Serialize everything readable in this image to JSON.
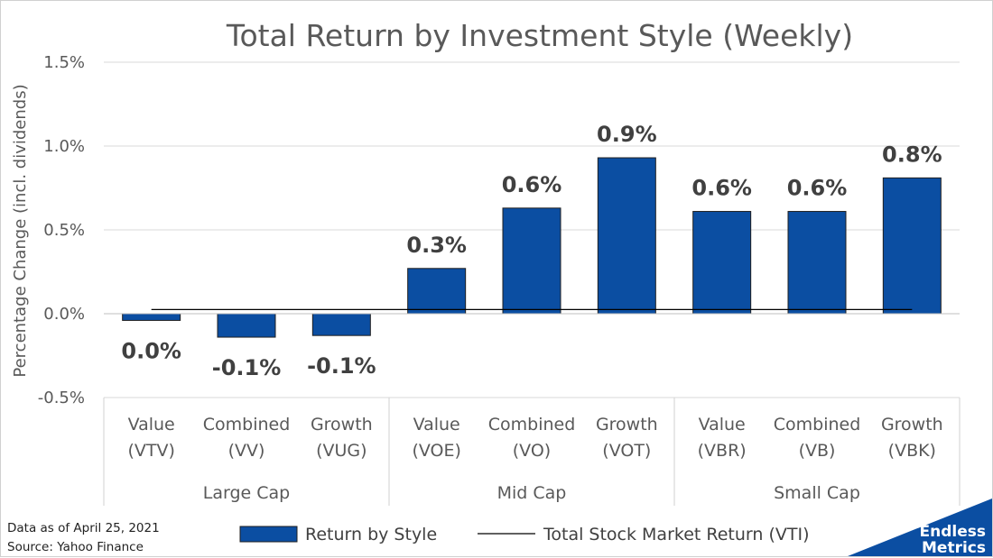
{
  "chart_data": {
    "type": "bar",
    "title": "Total Return by Investment Style (Weekly)",
    "ylabel": "Percentage Change (incl. dividends)",
    "xlabel": "",
    "ylim": [
      -0.5,
      1.5
    ],
    "yticks": [
      "1.5%",
      "1.0%",
      "0.5%",
      "0.0%",
      "-0.5%"
    ],
    "ytick_values": [
      1.5,
      1.0,
      0.5,
      0.0,
      -0.5
    ],
    "categories": [
      {
        "line1": "Value",
        "line2": "(VTV)"
      },
      {
        "line1": "Combined",
        "line2": "(VV)"
      },
      {
        "line1": "Growth",
        "line2": "(VUG)"
      },
      {
        "line1": "Value",
        "line2": "(VOE)"
      },
      {
        "line1": "Combined",
        "line2": "(VO)"
      },
      {
        "line1": "Growth",
        "line2": "(VOT)"
      },
      {
        "line1": "Value",
        "line2": "(VBR)"
      },
      {
        "line1": "Combined",
        "line2": "(VB)"
      },
      {
        "line1": "Growth",
        "line2": "(VBK)"
      }
    ],
    "groups": [
      "Large Cap",
      "Mid Cap",
      "Small Cap"
    ],
    "series": [
      {
        "name": "Return by Style",
        "type": "bar",
        "color": "#0b4ea2",
        "values": [
          -0.04,
          -0.14,
          -0.13,
          0.27,
          0.63,
          0.93,
          0.61,
          0.61,
          0.81
        ],
        "labels": [
          "0.0%",
          "-0.1%",
          "-0.1%",
          "0.3%",
          "0.6%",
          "0.9%",
          "0.6%",
          "0.6%",
          "0.8%"
        ]
      },
      {
        "name": "Total Stock Market Return (VTI)",
        "type": "line",
        "color": "#000000",
        "values": [
          0.025,
          0.025,
          0.025,
          0.025,
          0.025,
          0.025,
          0.025,
          0.025,
          0.025
        ]
      }
    ],
    "grid": true,
    "legend": "bottom"
  },
  "footnote": {
    "line1": "Data as of April 25, 2021",
    "line2": "Source: Yahoo Finance"
  },
  "logo": {
    "line1": "Endless",
    "line2": "Metrics",
    "color": "#0b4ea2"
  }
}
